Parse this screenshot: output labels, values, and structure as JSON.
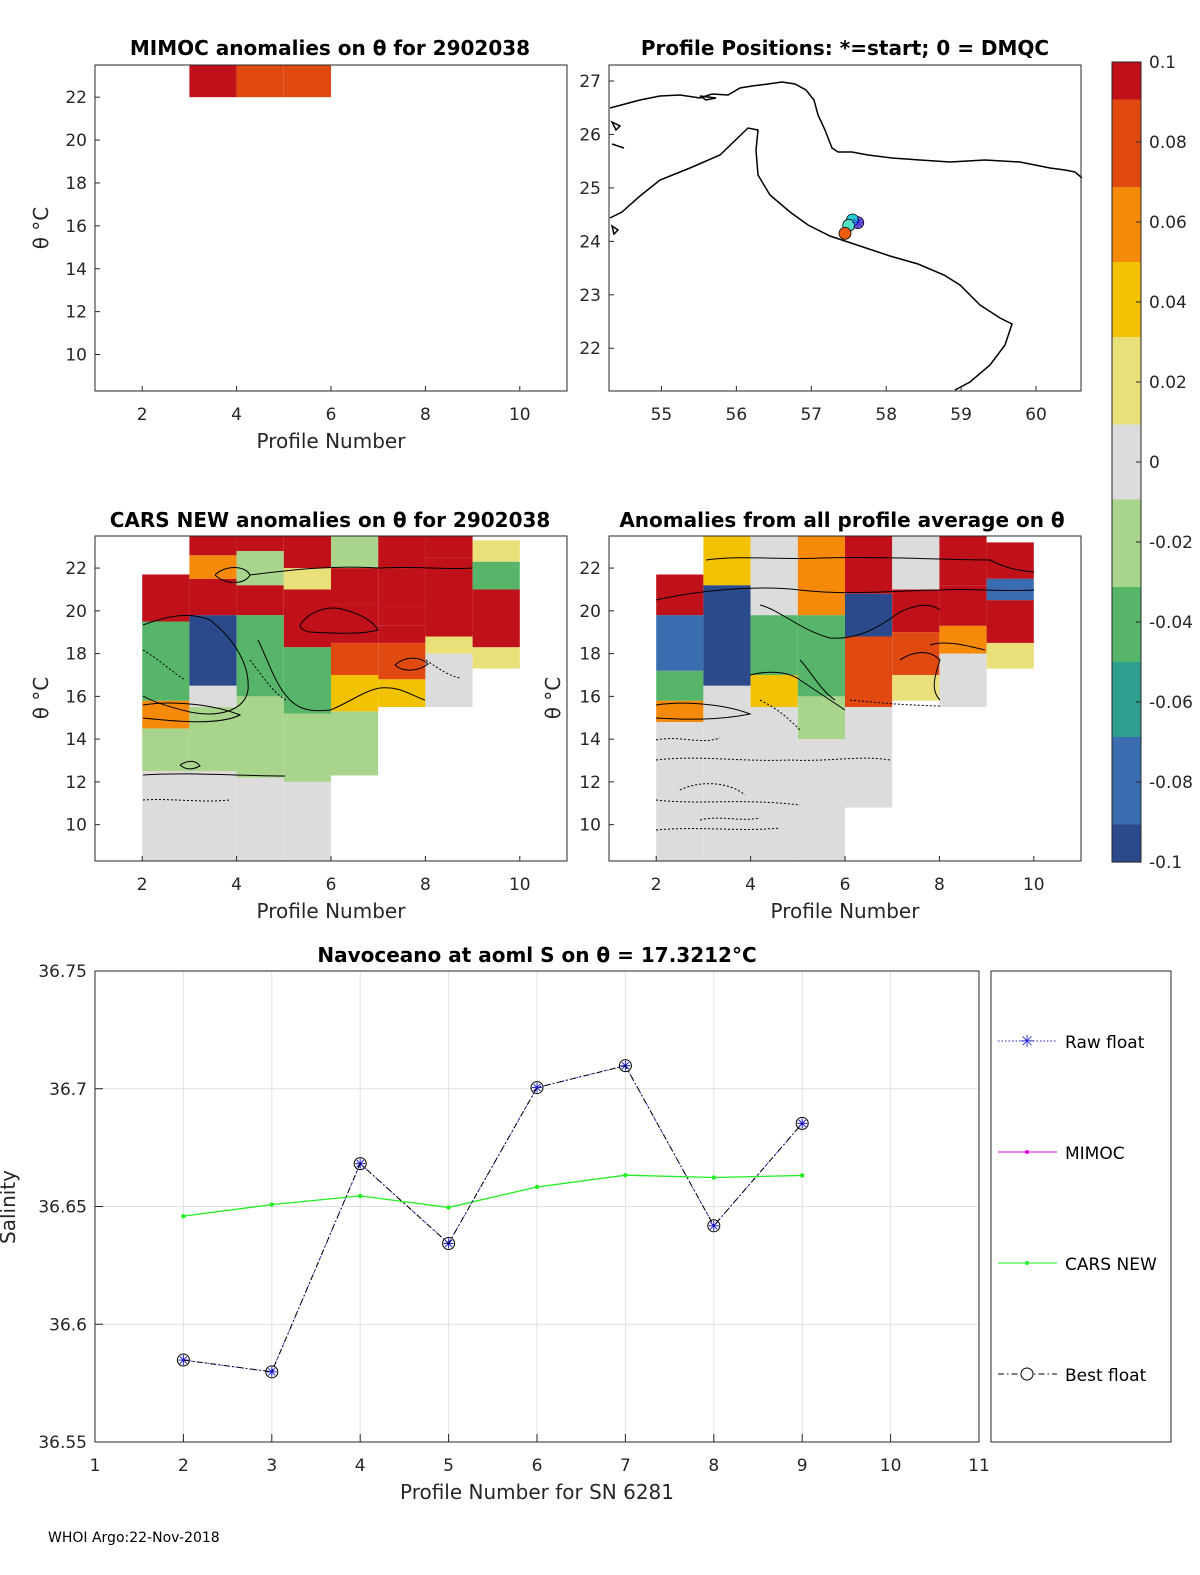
{
  "figure": {
    "footer": "WHOI Argo:22-Nov-2018"
  },
  "panels": {
    "mimoc": {
      "title": "MIMOC anomalies on θ  for 2902038",
      "xlabel": "Profile Number",
      "ylabel": "θ °C"
    },
    "positions": {
      "title": "Profile Positions: *=start; 0 = DMQC"
    },
    "cars": {
      "title": "CARS NEW anomalies on θ for 2902038",
      "xlabel": "Profile Number",
      "ylabel": "θ °C"
    },
    "avg": {
      "title": "Anomalies from all profile average on θ",
      "xlabel": "Profile Number",
      "ylabel": "θ °C"
    },
    "salinity": {
      "title": "Navoceano at aoml S on θ = 17.3212°C",
      "xlabel": "Profile Number for SN 6281",
      "ylabel": "Salinity"
    }
  },
  "colorbar": {
    "ticks": [
      "0.1",
      "0.08",
      "0.06",
      "0.04",
      "0.02",
      "0",
      "-0.02",
      "-0.04",
      "-0.06",
      "-0.08",
      "-0.1"
    ],
    "colors": [
      "#2b4a8c",
      "#3a6db0",
      "#2f9e8f",
      "#57b56a",
      "#a9d48c",
      "#dcdcdc",
      "#e9e07a",
      "#f2c200",
      "#f58a0a",
      "#e04a10",
      "#c0101a"
    ]
  },
  "legend": {
    "items": [
      {
        "label": "Raw float",
        "color": "#1f1fd6"
      },
      {
        "label": "MIMOC",
        "color": "#e000e0"
      },
      {
        "label": "CARS NEW",
        "color": "#22ee22"
      },
      {
        "label": "Best float",
        "color": "#000000"
      }
    ]
  },
  "chart_data": [
    {
      "id": "mimoc",
      "type": "heatmap",
      "title": "MIMOC anomalies on θ  for 2902038",
      "xlabel": "Profile Number",
      "ylabel": "θ °C",
      "xlim": [
        1,
        11
      ],
      "ylim": [
        8.3,
        23.5
      ],
      "xticks": [
        2,
        4,
        6,
        8,
        10
      ],
      "yticks": [
        10,
        12,
        14,
        16,
        18,
        20,
        22
      ],
      "cells": [
        {
          "x0": 3,
          "x1": 4,
          "y0": 22.0,
          "y1": 23.5,
          "v": 0.09
        },
        {
          "x0": 4,
          "x1": 5,
          "y0": 22.0,
          "y1": 23.5,
          "v": 0.08
        },
        {
          "x0": 5,
          "x1": 6,
          "y0": 22.0,
          "y1": 23.5,
          "v": 0.08
        }
      ]
    },
    {
      "id": "positions",
      "type": "scatter",
      "title": "Profile Positions: *=start; 0 = DMQC",
      "xlim": [
        54.3,
        60.6
      ],
      "ylim": [
        21.2,
        27.3
      ],
      "xticks": [
        55,
        56,
        57,
        58,
        59,
        60
      ],
      "yticks": [
        22,
        23,
        24,
        25,
        26,
        27
      ],
      "points": [
        {
          "lon": 57.62,
          "lat": 24.35
        },
        {
          "lon": 57.55,
          "lat": 24.4
        },
        {
          "lon": 57.5,
          "lat": 24.3
        },
        {
          "lon": 57.45,
          "lat": 24.15
        }
      ]
    },
    {
      "id": "cars",
      "type": "heatmap",
      "title": "CARS NEW anomalies on θ for 2902038",
      "xlabel": "Profile Number",
      "ylabel": "θ °C",
      "xlim": [
        1,
        11
      ],
      "ylim": [
        8.3,
        23.5
      ],
      "xticks": [
        2,
        4,
        6,
        8,
        10
      ],
      "yticks": [
        10,
        12,
        14,
        16,
        18,
        20,
        22
      ],
      "cells": [
        {
          "x0": 2,
          "x1": 3,
          "y0": 8.3,
          "y1": 12.5,
          "v": 0.0
        },
        {
          "x0": 2,
          "x1": 3,
          "y0": 12.5,
          "y1": 14.5,
          "v": -0.02
        },
        {
          "x0": 2,
          "x1": 3,
          "y0": 14.5,
          "y1": 15.8,
          "v": 0.05
        },
        {
          "x0": 2,
          "x1": 3,
          "y0": 15.8,
          "y1": 19.5,
          "v": -0.05
        },
        {
          "x0": 2,
          "x1": 3,
          "y0": 19.5,
          "y1": 21.7,
          "v": 0.1
        },
        {
          "x0": 3,
          "x1": 4,
          "y0": 8.3,
          "y1": 12.5,
          "v": 0.0
        },
        {
          "x0": 3,
          "x1": 4,
          "y0": 12.5,
          "y1": 15.5,
          "v": -0.02
        },
        {
          "x0": 3,
          "x1": 4,
          "y0": 15.5,
          "y1": 16.5,
          "v": 0.0
        },
        {
          "x0": 3,
          "x1": 4,
          "y0": 16.5,
          "y1": 19.8,
          "v": -0.1
        },
        {
          "x0": 3,
          "x1": 4,
          "y0": 19.8,
          "y1": 21.5,
          "v": 0.1
        },
        {
          "x0": 3,
          "x1": 4,
          "y0": 21.5,
          "y1": 22.6,
          "v": 0.05
        },
        {
          "x0": 3,
          "x1": 4,
          "y0": 22.6,
          "y1": 23.5,
          "v": 0.1
        },
        {
          "x0": 4,
          "x1": 5,
          "y0": 8.3,
          "y1": 12.2,
          "v": 0.0
        },
        {
          "x0": 4,
          "x1": 5,
          "y0": 12.2,
          "y1": 16.0,
          "v": -0.02
        },
        {
          "x0": 4,
          "x1": 5,
          "y0": 16.0,
          "y1": 19.8,
          "v": -0.04
        },
        {
          "x0": 4,
          "x1": 5,
          "y0": 19.8,
          "y1": 21.2,
          "v": 0.1
        },
        {
          "x0": 4,
          "x1": 5,
          "y0": 21.2,
          "y1": 22.8,
          "v": -0.03
        },
        {
          "x0": 4,
          "x1": 5,
          "y0": 22.8,
          "y1": 23.5,
          "v": 0.1
        },
        {
          "x0": 5,
          "x1": 6,
          "y0": 8.3,
          "y1": 12.0,
          "v": 0.0
        },
        {
          "x0": 5,
          "x1": 6,
          "y0": 12.0,
          "y1": 15.2,
          "v": -0.02
        },
        {
          "x0": 5,
          "x1": 6,
          "y0": 15.2,
          "y1": 18.3,
          "v": -0.04
        },
        {
          "x0": 5,
          "x1": 6,
          "y0": 18.3,
          "y1": 21.0,
          "v": 0.1
        },
        {
          "x0": 5,
          "x1": 6,
          "y0": 21.0,
          "y1": 22.0,
          "v": 0.02
        },
        {
          "x0": 5,
          "x1": 6,
          "y0": 22.0,
          "y1": 23.5,
          "v": 0.1
        },
        {
          "x0": 6,
          "x1": 7,
          "y0": 12.3,
          "y1": 15.3,
          "v": -0.02
        },
        {
          "x0": 6,
          "x1": 7,
          "y0": 15.3,
          "y1": 17.0,
          "v": 0.03
        },
        {
          "x0": 6,
          "x1": 7,
          "y0": 17.0,
          "y1": 18.5,
          "v": 0.07
        },
        {
          "x0": 6,
          "x1": 7,
          "y0": 18.5,
          "y1": 20.3,
          "v": 0.1
        },
        {
          "x0": 6,
          "x1": 7,
          "y0": 20.3,
          "y1": 22.0,
          "v": 0.1
        },
        {
          "x0": 6,
          "x1": 7,
          "y0": 22.0,
          "y1": 23.5,
          "v": -0.02
        },
        {
          "x0": 7,
          "x1": 8,
          "y0": 15.5,
          "y1": 16.8,
          "v": 0.03
        },
        {
          "x0": 7,
          "x1": 8,
          "y0": 16.8,
          "y1": 18.5,
          "v": 0.07
        },
        {
          "x0": 7,
          "x1": 8,
          "y0": 18.5,
          "y1": 19.3,
          "v": 0.09
        },
        {
          "x0": 7,
          "x1": 8,
          "y0": 19.3,
          "y1": 20.2,
          "v": 0.1
        },
        {
          "x0": 7,
          "x1": 8,
          "y0": 20.2,
          "y1": 22.0,
          "v": 0.1
        },
        {
          "x0": 7,
          "x1": 8,
          "y0": 22.0,
          "y1": 23.5,
          "v": 0.1
        },
        {
          "x0": 8,
          "x1": 9,
          "y0": 15.5,
          "y1": 18.0,
          "v": 0.0
        },
        {
          "x0": 8,
          "x1": 9,
          "y0": 18.0,
          "y1": 18.8,
          "v": 0.02
        },
        {
          "x0": 8,
          "x1": 9,
          "y0": 18.8,
          "y1": 22.5,
          "v": 0.1
        },
        {
          "x0": 8,
          "x1": 9,
          "y0": 22.5,
          "y1": 23.5,
          "v": 0.1
        },
        {
          "x0": 9,
          "x1": 10,
          "y0": 17.3,
          "y1": 18.3,
          "v": 0.02
        },
        {
          "x0": 9,
          "x1": 10,
          "y0": 18.3,
          "y1": 21.0,
          "v": 0.1
        },
        {
          "x0": 9,
          "x1": 10,
          "y0": 21.0,
          "y1": 22.3,
          "v": -0.04
        },
        {
          "x0": 9,
          "x1": 10,
          "y0": 22.3,
          "y1": 23.3,
          "v": 0.02
        }
      ]
    },
    {
      "id": "avg",
      "type": "heatmap",
      "title": "Anomalies from all profile average on θ",
      "xlabel": "Profile Number",
      "ylabel": "θ °C",
      "xlim": [
        1,
        11
      ],
      "ylim": [
        8.3,
        23.5
      ],
      "xticks": [
        2,
        4,
        6,
        8,
        10
      ],
      "yticks": [
        10,
        12,
        14,
        16,
        18,
        20,
        22
      ],
      "cells": [
        {
          "x0": 2,
          "x1": 3,
          "y0": 8.3,
          "y1": 14.8,
          "v": 0.0
        },
        {
          "x0": 2,
          "x1": 3,
          "y0": 14.8,
          "y1": 15.8,
          "v": 0.05
        },
        {
          "x0": 2,
          "x1": 3,
          "y0": 15.8,
          "y1": 17.2,
          "v": -0.05
        },
        {
          "x0": 2,
          "x1": 3,
          "y0": 17.2,
          "y1": 19.8,
          "v": -0.08
        },
        {
          "x0": 2,
          "x1": 3,
          "y0": 19.8,
          "y1": 21.7,
          "v": 0.1
        },
        {
          "x0": 3,
          "x1": 4,
          "y0": 8.3,
          "y1": 15.5,
          "v": 0.0
        },
        {
          "x0": 3,
          "x1": 4,
          "y0": 15.5,
          "y1": 16.5,
          "v": 0.0
        },
        {
          "x0": 3,
          "x1": 4,
          "y0": 16.5,
          "y1": 21.2,
          "v": -0.1
        },
        {
          "x0": 3,
          "x1": 4,
          "y0": 21.2,
          "y1": 23.5,
          "v": 0.04
        },
        {
          "x0": 4,
          "x1": 5,
          "y0": 8.3,
          "y1": 15.5,
          "v": 0.0
        },
        {
          "x0": 4,
          "x1": 5,
          "y0": 15.5,
          "y1": 17.0,
          "v": 0.03
        },
        {
          "x0": 4,
          "x1": 5,
          "y0": 17.0,
          "y1": 19.8,
          "v": -0.05
        },
        {
          "x0": 4,
          "x1": 5,
          "y0": 19.8,
          "y1": 23.5,
          "v": 0.0
        },
        {
          "x0": 5,
          "x1": 6,
          "y0": 8.3,
          "y1": 14.0,
          "v": 0.0
        },
        {
          "x0": 5,
          "x1": 6,
          "y0": 14.0,
          "y1": 16.0,
          "v": -0.02
        },
        {
          "x0": 5,
          "x1": 6,
          "y0": 16.0,
          "y1": 19.8,
          "v": -0.04
        },
        {
          "x0": 5,
          "x1": 6,
          "y0": 19.8,
          "y1": 23.5,
          "v": 0.06
        },
        {
          "x0": 6,
          "x1": 7,
          "y0": 10.8,
          "y1": 15.5,
          "v": 0.0
        },
        {
          "x0": 6,
          "x1": 7,
          "y0": 15.5,
          "y1": 18.8,
          "v": 0.08
        },
        {
          "x0": 6,
          "x1": 7,
          "y0": 18.8,
          "y1": 20.8,
          "v": -0.1
        },
        {
          "x0": 6,
          "x1": 7,
          "y0": 20.8,
          "y1": 23.5,
          "v": 0.1
        },
        {
          "x0": 7,
          "x1": 8,
          "y0": 15.8,
          "y1": 17.0,
          "v": 0.02
        },
        {
          "x0": 7,
          "x1": 8,
          "y0": 17.0,
          "y1": 19.0,
          "v": 0.07
        },
        {
          "x0": 7,
          "x1": 8,
          "y0": 19.0,
          "y1": 21.0,
          "v": 0.1
        },
        {
          "x0": 7,
          "x1": 8,
          "y0": 21.0,
          "y1": 23.5,
          "v": -0.01
        },
        {
          "x0": 8,
          "x1": 9,
          "y0": 15.5,
          "y1": 18.0,
          "v": 0.0
        },
        {
          "x0": 8,
          "x1": 9,
          "y0": 18.0,
          "y1": 19.3,
          "v": 0.06
        },
        {
          "x0": 8,
          "x1": 9,
          "y0": 19.3,
          "y1": 21.2,
          "v": 0.1
        },
        {
          "x0": 8,
          "x1": 9,
          "y0": 21.2,
          "y1": 23.5,
          "v": 0.09
        },
        {
          "x0": 9,
          "x1": 10,
          "y0": 17.3,
          "y1": 18.5,
          "v": 0.02
        },
        {
          "x0": 9,
          "x1": 10,
          "y0": 18.5,
          "y1": 20.5,
          "v": 0.1
        },
        {
          "x0": 9,
          "x1": 10,
          "y0": 20.5,
          "y1": 21.5,
          "v": -0.08
        },
        {
          "x0": 9,
          "x1": 10,
          "y0": 21.5,
          "y1": 23.2,
          "v": 0.1
        }
      ]
    },
    {
      "id": "salinity",
      "type": "line",
      "title": "Navoceano at aoml S on θ = 17.3212°C",
      "xlabel": "Profile Number for SN 6281",
      "ylabel": "Salinity",
      "xlim": [
        1,
        11
      ],
      "ylim": [
        36.55,
        36.75
      ],
      "xticks": [
        1,
        2,
        3,
        4,
        5,
        6,
        7,
        8,
        9,
        10,
        11
      ],
      "yticks": [
        "36.55",
        "36.6",
        "36.65",
        "36.7",
        "36.75"
      ],
      "grid": true,
      "legend": "right-outside",
      "series": [
        {
          "name": "Raw float",
          "x": [
            2,
            3,
            4,
            5,
            6,
            7,
            8,
            9
          ],
          "y": [
            36.5848,
            36.5798,
            36.6682,
            36.6343,
            36.7005,
            36.7098,
            36.6418,
            36.6853
          ]
        },
        {
          "name": "CARS NEW",
          "x": [
            2,
            3,
            4,
            5,
            6,
            7,
            8,
            9
          ],
          "y": [
            36.6459,
            36.6508,
            36.6545,
            36.6496,
            36.6583,
            36.6633,
            36.6623,
            36.6632
          ]
        },
        {
          "name": "Best float",
          "x": [
            2,
            3,
            4,
            5,
            6,
            7,
            8,
            9
          ],
          "y": [
            36.5848,
            36.5798,
            36.6682,
            36.6343,
            36.7005,
            36.7098,
            36.6418,
            36.6853
          ]
        }
      ]
    }
  ]
}
